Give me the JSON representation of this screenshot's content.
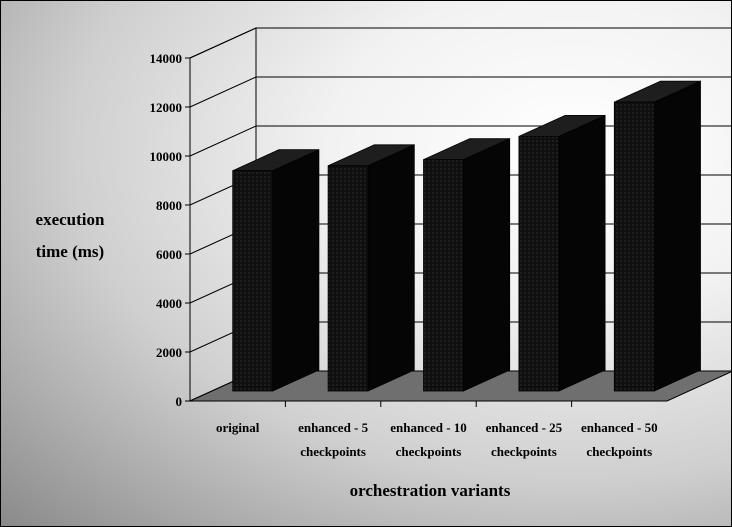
{
  "chart_data": {
    "type": "bar",
    "title": "",
    "xlabel": "orchestration variants",
    "ylabel": [
      "execution",
      "time (ms)"
    ],
    "categories": [
      [
        "original"
      ],
      [
        "enhanced - 5",
        "checkpoints"
      ],
      [
        "enhanced - 10",
        "checkpoints"
      ],
      [
        "enhanced - 25",
        "checkpoints"
      ],
      [
        "enhanced - 50",
        "checkpoints"
      ]
    ],
    "values": [
      9400,
      9600,
      9850,
      10800,
      12200
    ],
    "ylim": [
      0,
      14000
    ],
    "yticks": [
      "0",
      "2000",
      "4000",
      "6000",
      "8000",
      "10000",
      "12000",
      "14000"
    ],
    "style": "3d-column",
    "grid": true,
    "colors": {
      "bar_front": "#0f0f0f",
      "bar_side": "#050505",
      "bar_top": "#1e1e1e",
      "floor": "#6f6f6f",
      "gridline": "#000000"
    }
  }
}
